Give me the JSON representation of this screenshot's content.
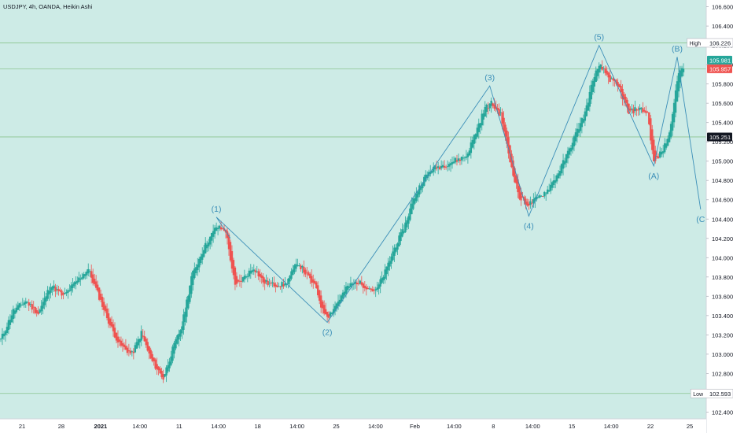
{
  "header": {
    "symbol_line": "USDJPY, 4h, OANDA, Heikin Ashi"
  },
  "colors": {
    "background": "#cdebe6",
    "bullish": "#26a69a",
    "bearish": "#ef5350",
    "wave_line": "#3c8fb8",
    "wave_label": "#3c8fb8",
    "level_line": "#8bc48f",
    "badge_current_up": "#26a69a",
    "badge_current_down": "#ef5350",
    "badge_dark": "#131722"
  },
  "chart_data": {
    "type": "candlestick",
    "style": "Heikin Ashi",
    "symbol": "USDJPY",
    "interval": "4h",
    "source": "OANDA",
    "y_axis": {
      "ticks": [
        "102.400",
        "102.600",
        "102.800",
        "103.000",
        "103.200",
        "103.400",
        "103.600",
        "103.800",
        "104.000",
        "104.200",
        "104.400",
        "104.600",
        "104.800",
        "105.000",
        "105.200",
        "105.400",
        "105.600",
        "105.800",
        "106.000",
        "106.200",
        "106.400",
        "106.600"
      ],
      "range": [
        102.33,
        106.67
      ]
    },
    "x_axis": {
      "ticks": [
        "21",
        "28",
        "2021",
        "14:00",
        "11",
        "14:00",
        "18",
        "14:00",
        "25",
        "14:00",
        "Feb",
        "14:00",
        "8",
        "14:00",
        "15",
        "14:00",
        "22",
        "25"
      ]
    },
    "price_badges": [
      {
        "label": "High",
        "value": "106.226",
        "style": "plain"
      },
      {
        "label": "",
        "value": "105.981",
        "style": "up"
      },
      {
        "label": "",
        "value": "105.957",
        "style": "down"
      },
      {
        "label": "",
        "value": "105.251",
        "style": "dark"
      },
      {
        "label": "Low",
        "value": "102.593",
        "style": "plain"
      }
    ],
    "horizontal_levels": [
      106.226,
      105.957,
      105.251,
      102.593
    ],
    "waves": [
      {
        "label": "(1)",
        "price": 104.42,
        "bar": 138
      },
      {
        "label": "(2)",
        "price": 103.33,
        "bar": 209
      },
      {
        "label": "(3)",
        "price": 105.78,
        "bar": 313
      },
      {
        "label": "(4)",
        "price": 104.43,
        "bar": 338
      },
      {
        "label": "(5)",
        "price": 106.2,
        "bar": 383
      },
      {
        "label": "(A)",
        "price": 104.95,
        "bar": 418
      },
      {
        "label": "(B)",
        "price": 106.08,
        "bar": 433
      },
      {
        "label": "(C",
        "price": 104.5,
        "bar": 448
      }
    ],
    "wave_path_start": {
      "price": 104.2,
      "bar": 147
    },
    "keypoints": [
      [
        0,
        103.15
      ],
      [
        8,
        103.45
      ],
      [
        16,
        103.55
      ],
      [
        24,
        103.42
      ],
      [
        32,
        103.72
      ],
      [
        40,
        103.6
      ],
      [
        50,
        103.78
      ],
      [
        56,
        103.88
      ],
      [
        64,
        103.55
      ],
      [
        70,
        103.3
      ],
      [
        76,
        103.1
      ],
      [
        84,
        103.0
      ],
      [
        90,
        103.22
      ],
      [
        96,
        102.95
      ],
      [
        104,
        102.75
      ],
      [
        110,
        103.05
      ],
      [
        116,
        103.3
      ],
      [
        122,
        103.8
      ],
      [
        130,
        104.1
      ],
      [
        138,
        104.32
      ],
      [
        144,
        104.28
      ],
      [
        150,
        103.7
      ],
      [
        156,
        103.8
      ],
      [
        162,
        103.9
      ],
      [
        168,
        103.75
      ],
      [
        174,
        103.72
      ],
      [
        182,
        103.72
      ],
      [
        190,
        103.95
      ],
      [
        196,
        103.82
      ],
      [
        202,
        103.68
      ],
      [
        206,
        103.45
      ],
      [
        210,
        103.4
      ],
      [
        216,
        103.55
      ],
      [
        222,
        103.7
      ],
      [
        228,
        103.75
      ],
      [
        234,
        103.7
      ],
      [
        240,
        103.65
      ],
      [
        246,
        103.85
      ],
      [
        252,
        104.1
      ],
      [
        258,
        104.3
      ],
      [
        264,
        104.6
      ],
      [
        270,
        104.8
      ],
      [
        276,
        104.92
      ],
      [
        282,
        104.95
      ],
      [
        290,
        105.0
      ],
      [
        298,
        105.05
      ],
      [
        304,
        105.3
      ],
      [
        310,
        105.55
      ],
      [
        314,
        105.6
      ],
      [
        320,
        105.48
      ],
      [
        326,
        105.0
      ],
      [
        332,
        104.62
      ],
      [
        338,
        104.55
      ],
      [
        344,
        104.62
      ],
      [
        350,
        104.7
      ],
      [
        356,
        104.85
      ],
      [
        362,
        105.05
      ],
      [
        368,
        105.28
      ],
      [
        374,
        105.5
      ],
      [
        380,
        105.9
      ],
      [
        384,
        105.98
      ],
      [
        390,
        105.85
      ],
      [
        396,
        105.75
      ],
      [
        402,
        105.5
      ],
      [
        408,
        105.55
      ],
      [
        414,
        105.5
      ],
      [
        418,
        104.98
      ],
      [
        424,
        105.12
      ],
      [
        428,
        105.28
      ],
      [
        432,
        105.75
      ],
      [
        435,
        105.95
      ],
      [
        437,
        105.957
      ]
    ],
    "y_bounds": {
      "low": 102.593,
      "high": 106.226
    },
    "bar_count": 438,
    "last_bar_price": 105.957
  }
}
